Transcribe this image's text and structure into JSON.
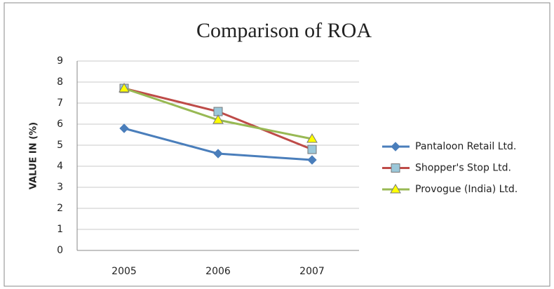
{
  "chart_data": {
    "type": "line",
    "title": "Comparison of ROA",
    "y_label": "VALUE IN (%)",
    "categories": [
      "2005",
      "2006",
      "2007"
    ],
    "series": [
      {
        "name": "Pantaloon Retail Ltd.",
        "color": "#4a7ebb",
        "marker": "diamond",
        "marker_color": "#4a7ebb",
        "values": [
          5.8,
          4.6,
          4.3
        ]
      },
      {
        "name": "Shopper's Stop Ltd.",
        "color": "#be4b48",
        "marker": "square",
        "marker_color": "#9bc7d9",
        "values": [
          7.7,
          6.6,
          4.8
        ]
      },
      {
        "name": "Provogue (India) Ltd.",
        "color": "#98b954",
        "marker": "triangle",
        "marker_color": "#ffff00",
        "values": [
          7.7,
          6.2,
          5.3
        ]
      }
    ],
    "ylim": [
      0,
      9
    ],
    "yticks": [
      0,
      1,
      2,
      3,
      4,
      5,
      6,
      7,
      8,
      9
    ],
    "grid": true,
    "legend": "right"
  }
}
